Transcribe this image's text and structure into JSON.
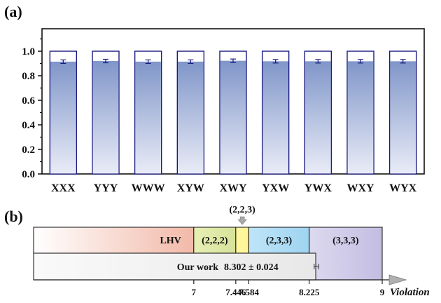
{
  "panel_a_label": "(a)",
  "panel_b_label": "(b)",
  "chart_data": [
    {
      "type": "bar",
      "title": "",
      "xlabel": "",
      "ylabel": "",
      "ylim": [
        0,
        1.15
      ],
      "yticks": [
        "0.0",
        "0.2",
        "0.4",
        "0.6",
        "0.8",
        "1.0"
      ],
      "ytick_values": [
        0.0,
        0.2,
        0.4,
        0.6,
        0.8,
        1.0
      ],
      "categories": [
        "XXX",
        "YYY",
        "WWW",
        "XYW",
        "XWY",
        "YXW",
        "YWX",
        "WXY",
        "WYX"
      ],
      "series": [
        {
          "name": "outline",
          "values": [
            1,
            1,
            1,
            1,
            1,
            1,
            1,
            1,
            1
          ]
        },
        {
          "name": "value",
          "values": [
            0.915,
            0.92,
            0.915,
            0.915,
            0.922,
            0.918,
            0.918,
            0.918,
            0.918
          ]
        }
      ],
      "error": [
        0.01,
        0.01,
        0.01,
        0.01,
        0.01,
        0.01,
        0.01,
        0.01,
        0.01
      ],
      "grid": false
    },
    {
      "type": "bar",
      "orientation": "horizontal",
      "axis_label": "Violation",
      "xlim": [
        5.3,
        9
      ],
      "ticks": [
        "7",
        "7.446",
        "7.584",
        "8.225",
        "9"
      ],
      "tick_values": [
        7,
        7.446,
        7.584,
        8.225,
        9
      ],
      "segments": [
        {
          "label": "LHV",
          "start": 5.3,
          "end": 7,
          "color": "#f2b9a8"
        },
        {
          "label": "(2,2,2)",
          "start": 7,
          "end": 7.446,
          "color": "#dfe8a6"
        },
        {
          "label": "(2,2,3)",
          "start": 7.446,
          "end": 7.584,
          "color": "#fff59a"
        },
        {
          "label": "(2,3,3)",
          "start": 7.584,
          "end": 8.225,
          "color": "#a8d8f3"
        },
        {
          "label": "(3,3,3)",
          "start": 8.225,
          "end": 9,
          "color": "#c9c4e4"
        }
      ],
      "our_work": {
        "label": "Our work",
        "value_text": "8.302 ± 0.024",
        "value": 8.302,
        "error": 0.024
      }
    }
  ]
}
